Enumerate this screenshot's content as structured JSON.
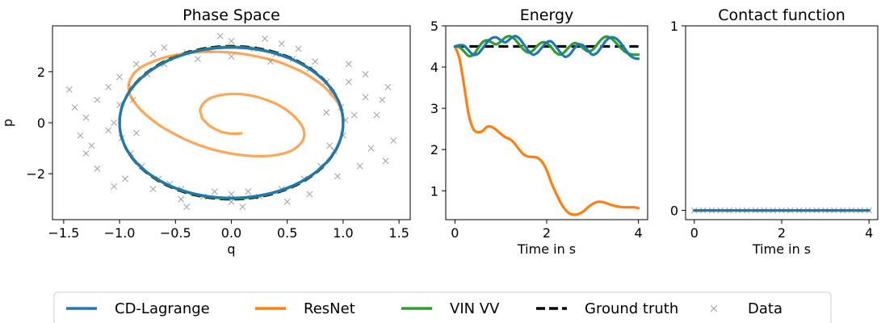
{
  "colors": {
    "cd_lagrange": "#1f77b4",
    "resnet": "#ff7f0e",
    "vin_vv": "#2ca02c",
    "ground_truth": "#000000",
    "data": "#808080"
  },
  "chart_data": [
    {
      "type": "line",
      "title": "Phase Space",
      "xlabel": "q",
      "ylabel": "p",
      "xlim": [
        -1.6,
        1.6
      ],
      "ylim": [
        -3.8,
        3.8
      ],
      "xticks": [
        -1.5,
        -1.0,
        -0.5,
        0.0,
        0.5,
        1.0,
        1.5
      ],
      "xtick_labels": [
        "−1.5",
        "−1.0",
        "−0.5",
        "0.0",
        "0.5",
        "1.0",
        "1.5"
      ],
      "yticks": [
        -2,
        0,
        2
      ],
      "ytick_labels": [
        "−2",
        "0",
        "2"
      ],
      "grid": false,
      "series": [
        {
          "name": "Ground truth",
          "kind": "ellipse",
          "center": [
            0,
            0
          ],
          "q_amplitude": 1.0,
          "p_amplitude": 3.0
        },
        {
          "name": "CD-Lagrange",
          "kind": "ellipse",
          "center": [
            0,
            0
          ],
          "q_amplitude": 1.0,
          "p_amplitude": 2.95
        },
        {
          "name": "VIN VV",
          "kind": "ellipse",
          "center": [
            0,
            0
          ],
          "q_amplitude": 1.0,
          "p_amplitude": 2.97
        },
        {
          "name": "ResNet",
          "kind": "spiral",
          "points": [
            [
              1.0,
              0.0
            ],
            [
              0.99,
              0.37
            ],
            [
              0.96,
              0.73
            ],
            [
              0.9,
              1.08
            ],
            [
              0.83,
              1.41
            ],
            [
              0.74,
              1.71
            ],
            [
              0.64,
              1.98
            ],
            [
              0.52,
              2.22
            ],
            [
              0.4,
              2.42
            ],
            [
              0.26,
              2.57
            ],
            [
              0.12,
              2.69
            ],
            [
              -0.02,
              2.76
            ],
            [
              -0.17,
              2.78
            ],
            [
              -0.31,
              2.76
            ],
            [
              -0.45,
              2.69
            ],
            [
              -0.58,
              2.58
            ],
            [
              -0.69,
              2.42
            ],
            [
              -0.79,
              2.22
            ],
            [
              -0.86,
              1.99
            ],
            [
              -0.9,
              1.73
            ],
            [
              -0.92,
              1.44
            ],
            [
              -0.91,
              1.14
            ],
            [
              -0.87,
              0.82
            ],
            [
              -0.81,
              0.5
            ],
            [
              -0.73,
              0.19
            ],
            [
              -0.64,
              -0.11
            ],
            [
              -0.53,
              -0.39
            ],
            [
              -0.42,
              -0.64
            ],
            [
              -0.3,
              -0.86
            ],
            [
              -0.18,
              -1.03
            ],
            [
              -0.06,
              -1.16
            ],
            [
              0.06,
              -1.25
            ],
            [
              0.17,
              -1.3
            ],
            [
              0.28,
              -1.31
            ],
            [
              0.38,
              -1.28
            ],
            [
              0.47,
              -1.2
            ],
            [
              0.54,
              -1.09
            ],
            [
              0.59,
              -0.94
            ],
            [
              0.63,
              -0.76
            ],
            [
              0.65,
              -0.56
            ],
            [
              0.65,
              -0.34
            ],
            [
              0.63,
              -0.11
            ],
            [
              0.59,
              0.12
            ],
            [
              0.54,
              0.34
            ],
            [
              0.48,
              0.54
            ],
            [
              0.41,
              0.72
            ],
            [
              0.33,
              0.87
            ],
            [
              0.25,
              0.99
            ],
            [
              0.17,
              1.07
            ],
            [
              0.09,
              1.12
            ],
            [
              0.01,
              1.13
            ],
            [
              -0.06,
              1.11
            ],
            [
              -0.12,
              1.06
            ],
            [
              -0.18,
              0.98
            ],
            [
              -0.22,
              0.88
            ],
            [
              -0.25,
              0.76
            ],
            [
              -0.27,
              0.62
            ],
            [
              -0.28,
              0.47
            ],
            [
              -0.27,
              0.32
            ],
            [
              -0.26,
              0.17
            ],
            [
              -0.23,
              0.03
            ],
            [
              -0.2,
              -0.1
            ],
            [
              -0.16,
              -0.21
            ],
            [
              -0.12,
              -0.3
            ],
            [
              -0.08,
              -0.37
            ],
            [
              -0.03,
              -0.41
            ],
            [
              0.01,
              -0.43
            ],
            [
              0.05,
              -0.43
            ],
            [
              0.09,
              -0.41
            ]
          ]
        },
        {
          "name": "Data",
          "kind": "scatter",
          "marker": "x",
          "points": [
            [
              1.02,
              0.1
            ],
            [
              0.98,
              0.6
            ],
            [
              0.9,
              1.2
            ],
            [
              0.85,
              1.6
            ],
            [
              0.7,
              2.1
            ],
            [
              0.55,
              2.5
            ],
            [
              0.4,
              2.7
            ],
            [
              0.2,
              2.9
            ],
            [
              0.0,
              3.2
            ],
            [
              -0.2,
              2.85
            ],
            [
              -0.4,
              2.75
            ],
            [
              -0.6,
              2.3
            ],
            [
              -0.75,
              1.9
            ],
            [
              -0.9,
              1.4
            ],
            [
              -1.0,
              0.7
            ],
            [
              -1.05,
              0.0
            ],
            [
              -0.98,
              -0.6
            ],
            [
              -0.9,
              -1.2
            ],
            [
              -0.8,
              -1.7
            ],
            [
              -0.65,
              -2.2
            ],
            [
              -0.45,
              -2.6
            ],
            [
              -0.25,
              -2.9
            ],
            [
              0.0,
              -3.1
            ],
            [
              0.25,
              -2.9
            ],
            [
              0.45,
              -2.6
            ],
            [
              0.65,
              -2.2
            ],
            [
              0.8,
              -1.7
            ],
            [
              0.92,
              -1.1
            ],
            [
              1.0,
              -0.5
            ],
            [
              1.1,
              0.3
            ],
            [
              -1.1,
              -0.3
            ],
            [
              -1.2,
              0.9
            ],
            [
              -1.25,
              -0.9
            ],
            [
              1.2,
              1.0
            ],
            [
              1.25,
              -1.0
            ],
            [
              1.3,
              0.3
            ],
            [
              -1.3,
              0.2
            ],
            [
              -1.45,
              1.3
            ],
            [
              1.45,
              -0.7
            ],
            [
              1.38,
              -1.5
            ],
            [
              -1.3,
              -1.2
            ],
            [
              0.6,
              2.9
            ],
            [
              -0.6,
              2.95
            ],
            [
              0.3,
              3.3
            ],
            [
              -0.1,
              3.4
            ],
            [
              0.1,
              -3.3
            ],
            [
              -0.4,
              -3.3
            ],
            [
              0.5,
              -3.1
            ],
            [
              -0.7,
              -2.6
            ],
            [
              0.75,
              2.4
            ],
            [
              -0.85,
              2.3
            ],
            [
              -1.0,
              1.8
            ],
            [
              -1.1,
              1.4
            ],
            [
              1.05,
              1.6
            ],
            [
              1.15,
              -1.7
            ],
            [
              -0.95,
              -2.2
            ],
            [
              0.95,
              -2.1
            ],
            [
              -0.55,
              -2.4
            ],
            [
              0.35,
              2.4
            ],
            [
              -0.3,
              2.5
            ],
            [
              0.15,
              -2.7
            ],
            [
              -0.15,
              -2.7
            ],
            [
              0.85,
              0.4
            ],
            [
              -0.85,
              -0.4
            ],
            [
              0.88,
              -0.9
            ],
            [
              -0.88,
              0.9
            ],
            [
              1.2,
              1.9
            ],
            [
              -1.2,
              -1.8
            ],
            [
              0.45,
              3.1
            ],
            [
              -0.45,
              -3.0
            ],
            [
              1.35,
              0.9
            ],
            [
              -1.35,
              -0.5
            ],
            [
              1.05,
              2.3
            ],
            [
              -1.05,
              -2.5
            ],
            [
              0.7,
              -2.8
            ],
            [
              -0.7,
              2.7
            ],
            [
              0.0,
              2.6
            ],
            [
              0.0,
              -2.8
            ],
            [
              1.4,
              1.4
            ],
            [
              -1.4,
              0.6
            ]
          ]
        }
      ]
    },
    {
      "type": "line",
      "title": "Energy",
      "xlabel": "Time in s",
      "ylabel": "",
      "xlim": [
        -0.2,
        4.2
      ],
      "ylim": [
        0.3,
        5.0
      ],
      "xticks": [
        0,
        2,
        4
      ],
      "xtick_labels": [
        "0",
        "2",
        "4"
      ],
      "yticks": [
        1,
        2,
        3,
        4,
        5
      ],
      "ytick_labels": [
        "1",
        "2",
        "3",
        "4",
        "5"
      ],
      "grid": false,
      "series": [
        {
          "name": "Ground truth",
          "x": [
            0,
            4
          ],
          "y": [
            4.5,
            4.5
          ]
        },
        {
          "name": "CD-Lagrange",
          "x": [
            0.0,
            0.1,
            0.2,
            0.3,
            0.4,
            0.5,
            0.6,
            0.7,
            0.8,
            0.9,
            1.0,
            1.1,
            1.2,
            1.3,
            1.4,
            1.5,
            1.6,
            1.7,
            1.8,
            1.9,
            2.0,
            2.1,
            2.2,
            2.3,
            2.4,
            2.5,
            2.6,
            2.7,
            2.8,
            2.9,
            3.0,
            3.1,
            3.2,
            3.3,
            3.4,
            3.5,
            3.6,
            3.7,
            3.8,
            3.9,
            4.0
          ],
          "y": [
            4.5,
            4.53,
            4.52,
            4.4,
            4.3,
            4.32,
            4.45,
            4.6,
            4.7,
            4.72,
            4.65,
            4.6,
            4.68,
            4.75,
            4.7,
            4.55,
            4.4,
            4.3,
            4.35,
            4.48,
            4.6,
            4.62,
            4.5,
            4.35,
            4.25,
            4.3,
            4.45,
            4.55,
            4.52,
            4.4,
            4.3,
            4.35,
            4.5,
            4.65,
            4.72,
            4.7,
            4.6,
            4.45,
            4.3,
            4.22,
            4.2
          ]
        },
        {
          "name": "VIN VV",
          "x": [
            0.0,
            0.1,
            0.2,
            0.3,
            0.4,
            0.5,
            0.6,
            0.7,
            0.8,
            0.9,
            1.0,
            1.1,
            1.2,
            1.3,
            1.4,
            1.5,
            1.6,
            1.7,
            1.8,
            1.9,
            2.0,
            2.1,
            2.2,
            2.3,
            2.4,
            2.5,
            2.6,
            2.7,
            2.8,
            2.9,
            3.0,
            3.1,
            3.2,
            3.3,
            3.4,
            3.5,
            3.6,
            3.7,
            3.8,
            3.9,
            4.0
          ],
          "y": [
            4.5,
            4.48,
            4.38,
            4.27,
            4.3,
            4.45,
            4.6,
            4.65,
            4.6,
            4.55,
            4.62,
            4.72,
            4.75,
            4.68,
            4.55,
            4.42,
            4.35,
            4.4,
            4.52,
            4.6,
            4.58,
            4.48,
            4.35,
            4.3,
            4.38,
            4.5,
            4.58,
            4.55,
            4.45,
            4.38,
            4.42,
            4.55,
            4.68,
            4.74,
            4.7,
            4.6,
            4.48,
            4.38,
            4.32,
            4.3,
            4.3
          ]
        },
        {
          "name": "ResNet",
          "x": [
            0.0,
            0.1,
            0.2,
            0.3,
            0.4,
            0.5,
            0.6,
            0.7,
            0.8,
            0.9,
            1.0,
            1.1,
            1.2,
            1.3,
            1.4,
            1.5,
            1.6,
            1.7,
            1.8,
            1.9,
            2.0,
            2.1,
            2.2,
            2.3,
            2.4,
            2.5,
            2.6,
            2.7,
            2.8,
            2.9,
            3.0,
            3.1,
            3.2,
            3.3,
            3.4,
            3.5,
            3.6,
            3.7,
            3.8,
            3.9,
            4.0
          ],
          "y": [
            4.5,
            4.2,
            3.55,
            2.85,
            2.5,
            2.42,
            2.45,
            2.55,
            2.55,
            2.48,
            2.38,
            2.3,
            2.25,
            2.15,
            2.0,
            1.88,
            1.83,
            1.82,
            1.8,
            1.7,
            1.5,
            1.2,
            0.95,
            0.72,
            0.55,
            0.45,
            0.42,
            0.44,
            0.5,
            0.6,
            0.68,
            0.73,
            0.73,
            0.7,
            0.66,
            0.63,
            0.61,
            0.6,
            0.6,
            0.6,
            0.58
          ]
        }
      ]
    },
    {
      "type": "line",
      "title": "Contact function",
      "xlabel": "Time in s",
      "ylabel": "",
      "xlim": [
        -0.2,
        4.2
      ],
      "ylim": [
        -0.05,
        1.0
      ],
      "xticks": [
        0,
        2,
        4
      ],
      "xtick_labels": [
        "0",
        "2",
        "4"
      ],
      "yticks": [
        0,
        1
      ],
      "ytick_labels": [
        "0",
        "1"
      ],
      "grid": false,
      "series": [
        {
          "name": "Ground truth",
          "x": [
            0,
            4
          ],
          "y": [
            0,
            0
          ]
        },
        {
          "name": "CD-Lagrange",
          "x": [
            0,
            4
          ],
          "y": [
            0,
            0
          ]
        },
        {
          "name": "VIN VV",
          "x": [
            0,
            4
          ],
          "y": [
            0,
            0
          ]
        },
        {
          "name": "Data",
          "kind": "scatter",
          "marker": "x",
          "x": [
            0.0,
            0.2,
            0.4,
            0.6,
            0.8,
            1.0,
            1.2,
            1.4,
            1.6,
            1.8,
            2.0,
            2.2,
            2.4,
            2.6,
            2.8,
            3.0,
            3.2,
            3.4,
            3.6,
            3.8,
            4.0
          ],
          "y": [
            0,
            0,
            0,
            0,
            0,
            0,
            0,
            0,
            0,
            0,
            0,
            0,
            0,
            0,
            0,
            0,
            0,
            0,
            0,
            0,
            0
          ]
        }
      ]
    }
  ],
  "legend": {
    "placement": "bottom-center",
    "entries": [
      {
        "label": "CD-Lagrange",
        "style": "solid",
        "color_key": "cd_lagrange"
      },
      {
        "label": "ResNet",
        "style": "solid",
        "color_key": "resnet"
      },
      {
        "label": "VIN VV",
        "style": "solid",
        "color_key": "vin_vv"
      },
      {
        "label": "Ground truth",
        "style": "dashed",
        "color_key": "ground_truth"
      },
      {
        "label": "Data",
        "style": "x-marker",
        "color_key": "data"
      }
    ]
  }
}
